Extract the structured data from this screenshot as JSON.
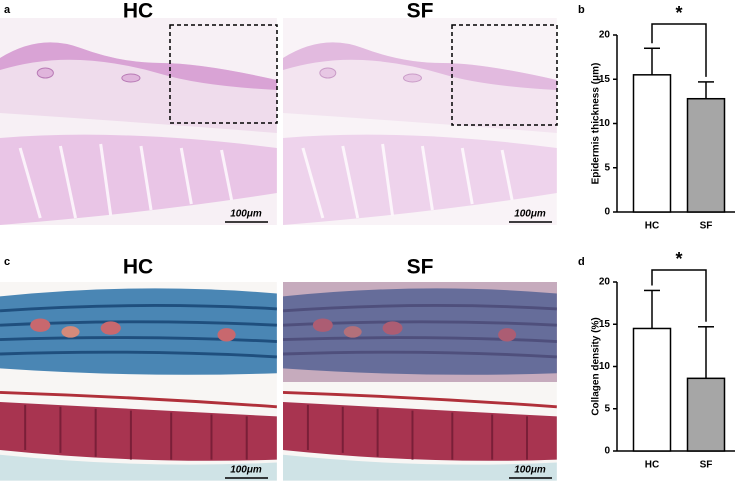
{
  "panels": [
    {
      "label": "a",
      "images": [
        {
          "title": "HC",
          "scale_bar": "100μm"
        },
        {
          "title": "SF",
          "scale_bar": "100μm"
        }
      ]
    },
    {
      "label": "c",
      "images": [
        {
          "title": "HC",
          "scale_bar": "100μm"
        },
        {
          "title": "SF",
          "scale_bar": "100μm"
        }
      ]
    }
  ],
  "chart_data": [
    {
      "type": "bar",
      "panel_label": "b",
      "ylabel": "Epidermis thickness (μm)",
      "categories": [
        "HC",
        "SF"
      ],
      "values": [
        15.5,
        12.8
      ],
      "errors": [
        3.0,
        1.9
      ],
      "colors": [
        "#ffffff",
        "#a6a6a6"
      ],
      "ylim": [
        0,
        20
      ],
      "yticks": [
        0,
        5,
        10,
        15,
        20
      ],
      "significance": "*"
    },
    {
      "type": "bar",
      "panel_label": "d",
      "ylabel": "Collagen density (%)",
      "categories": [
        "HC",
        "SF"
      ],
      "values": [
        14.5,
        8.6
      ],
      "errors": [
        4.5,
        6.1
      ],
      "colors": [
        "#ffffff",
        "#a6a6a6"
      ],
      "ylim": [
        0,
        20
      ],
      "yticks": [
        0,
        5,
        10,
        15,
        20
      ],
      "significance": "*"
    }
  ]
}
